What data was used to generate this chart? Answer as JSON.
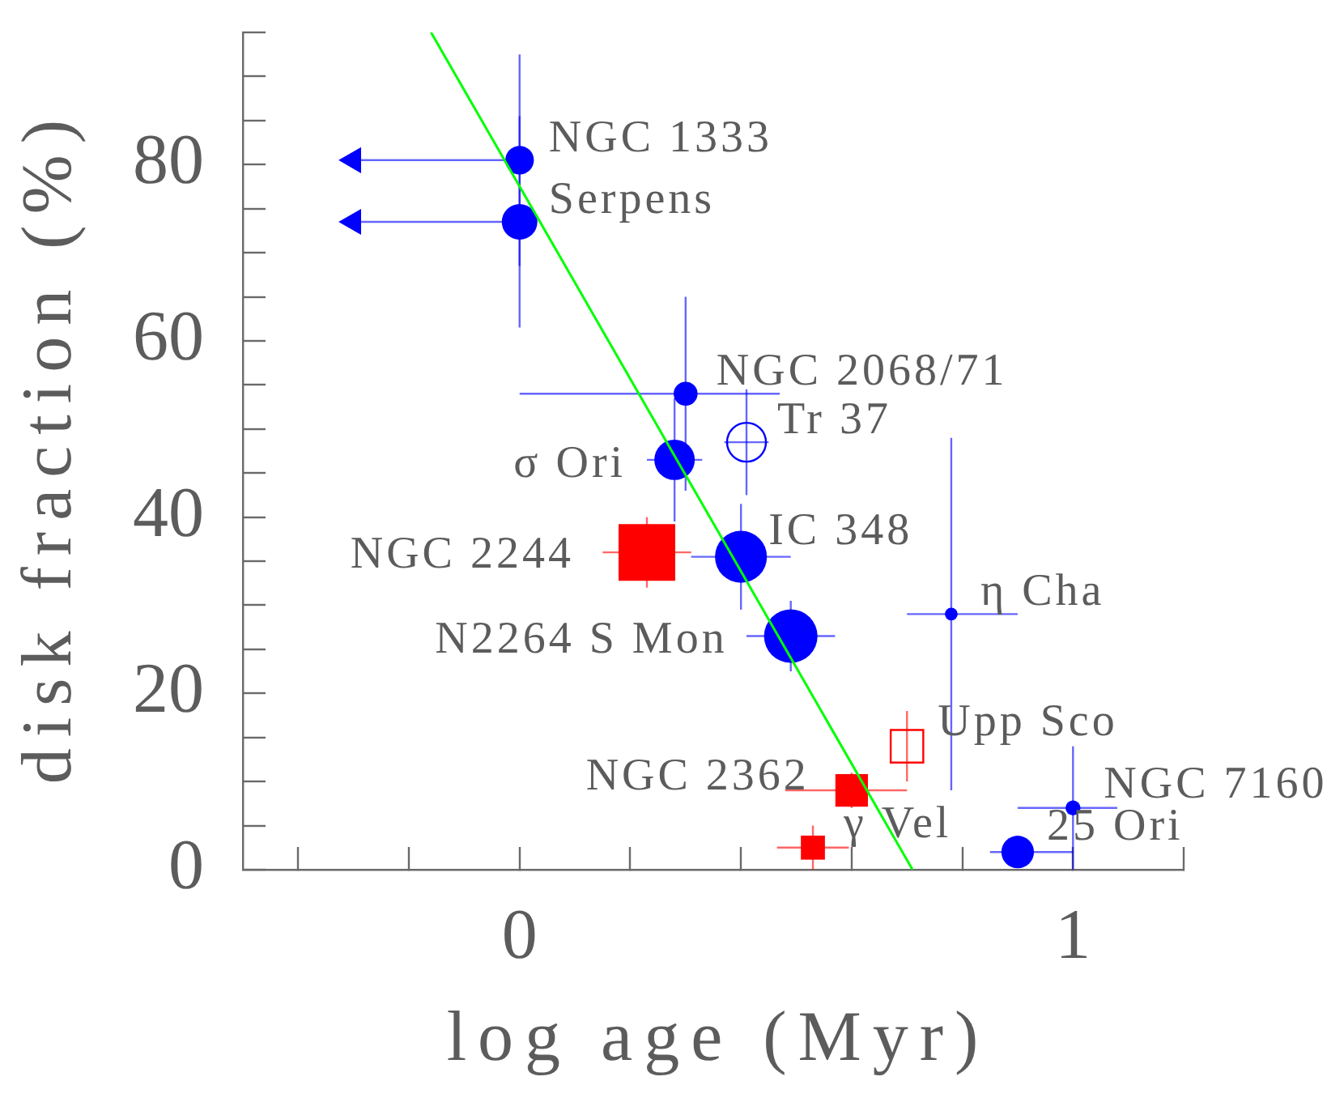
{
  "chart_data": {
    "type": "bubble",
    "xlabel": "log age (Myr)",
    "ylabel": "disk fraction (%)",
    "xlim": [
      -0.5,
      1.2
    ],
    "ylim": [
      0,
      95
    ],
    "xticks": [
      {
        "value": -0.4,
        "label": null
      },
      {
        "value": -0.2,
        "label": null
      },
      0,
      {
        "value": 0.2,
        "label": null
      },
      {
        "value": 0.4,
        "label": null
      },
      {
        "value": 0.6,
        "label": null
      },
      {
        "value": 0.8,
        "label": null
      },
      1,
      {
        "value": 1.2,
        "label": null
      }
    ],
    "yticks": [
      0,
      {
        "value": 5,
        "label": null
      },
      {
        "value": 10,
        "label": null
      },
      {
        "value": 15,
        "label": null
      },
      20,
      {
        "value": 25,
        "label": null
      },
      {
        "value": 30,
        "label": null
      },
      {
        "value": 35,
        "label": null
      },
      40,
      {
        "value": 45,
        "label": null
      },
      {
        "value": 50,
        "label": null
      },
      {
        "value": 55,
        "label": null
      },
      60,
      {
        "value": 65,
        "label": null
      },
      {
        "value": 70,
        "label": null
      },
      {
        "value": 75,
        "label": null
      },
      80,
      {
        "value": 85,
        "label": null
      },
      {
        "value": 90,
        "label": null
      },
      {
        "value": 95,
        "label": null
      }
    ],
    "series": [
      {
        "name": "NGC 1333",
        "color": "#0000ff",
        "marker": "circle",
        "x": [
          0
        ],
        "values": [
          80.5
        ],
        "sizes": [
          0.2
        ],
        "errors": [
          12
        ],
        "xerrors": [
          [
            -0.32,
            0
          ]
        ]
      },
      {
        "name": "Serpens",
        "color": "#0000ff",
        "marker": "circle",
        "x": [
          0
        ],
        "values": [
          73.5
        ],
        "sizes": [
          0.31
        ],
        "errors": [
          12
        ],
        "xerrors": [
          [
            -0.32,
            0
          ]
        ]
      },
      {
        "name": "NGC 2068/71",
        "color": "#0000ff",
        "marker": "circle",
        "x": [
          0.3
        ],
        "values": [
          54
        ],
        "sizes": [
          0.14
        ],
        "errors": [
          11
        ],
        "xerrors": [
          [
            0,
            0.47
          ]
        ]
      },
      {
        "name": "Tr 37",
        "color": "#0000ff",
        "marker": "circle",
        "x": [
          0.41
        ],
        "values": [
          48.5
        ],
        "sizes": [
          0.37
        ],
        "errors": [
          6
        ],
        "xerrors": [
          0.04
        ]
      },
      {
        "name": "σ Ori",
        "color": "#0000ff",
        "marker": "circle",
        "x": [
          0.28
        ],
        "values": [
          46.5
        ],
        "sizes": [
          0.4
        ],
        "errors": [
          7
        ],
        "xerrors": [
          0.05
        ]
      },
      {
        "name": "NGC 2244",
        "color": "#ff0000",
        "marker": "square",
        "x": [
          0.23
        ],
        "values": [
          36
        ],
        "sizes": [
          1
        ],
        "errors": [
          4
        ],
        "xerrors": [
          0.08
        ]
      },
      {
        "name": "IC 348",
        "color": "#0000ff",
        "marker": "circle",
        "x": [
          0.4
        ],
        "values": [
          35.5
        ],
        "sizes": [
          0.66
        ],
        "errors": [
          6
        ],
        "xerrors": [
          0.09
        ]
      },
      {
        "name": "N2264 S Mon",
        "color": "#0000ff",
        "marker": "circle",
        "x": [
          0.49
        ],
        "values": [
          26.5
        ],
        "sizes": [
          0.7
        ],
        "errors": [
          4
        ],
        "xerrors": [
          0.08
        ]
      },
      {
        "name": "η Cha",
        "color": "#0000ff",
        "marker": "circle",
        "x": [
          0.78
        ],
        "values": [
          29
        ],
        "sizes": [
          0.04
        ],
        "errors": [
          20
        ],
        "xerrors": [
          [
            0.7,
            0.9
          ]
        ]
      },
      {
        "name": "Upp Sco",
        "color": "#ff0000",
        "marker": "square",
        "x": [
          0.7
        ],
        "values": [
          14
        ],
        "sizes": [
          0.33
        ],
        "errors": [
          4
        ]
      },
      {
        "name": "NGC 2362",
        "color": "#ff0000",
        "marker": "square",
        "x": [
          0.6
        ],
        "values": [
          9
        ],
        "sizes": [
          0.33
        ],
        "errors": [
          2
        ],
        "xerrors": [
          [
            0.48,
            0.7
          ]
        ]
      },
      {
        "name": "γ Vel",
        "color": "#ff0000",
        "marker": "square",
        "x": [
          0.53
        ],
        "values": [
          2.5
        ],
        "sizes": [
          0.18
        ],
        "errors": [
          2.5
        ],
        "xerrors": [
          0.065
        ]
      },
      {
        "name": "NGC 7160",
        "color": "#0000ff",
        "marker": "circle",
        "x": [
          1.0
        ],
        "values": [
          7
        ],
        "sizes": [
          0.055
        ],
        "errors": [
          7
        ],
        "xerrors": [
          [
            0.9,
            1.08
          ]
        ]
      },
      {
        "name": "25 Ori",
        "color": "#0000ff",
        "marker": "circle",
        "x": [
          0.9
        ],
        "values": [
          2
        ],
        "sizes": [
          0.26
        ],
        "xerrors": [
          [
            0.85,
            1.0
          ]
        ]
      },
      {
        "type": "scatter",
        "color": "#0000ff",
        "marker": "triangle",
        "x": [
          -0.3,
          -0.3
        ],
        "values": [
          80.5,
          73.5
        ]
      },
      {
        "type": "line",
        "color": "#00ff00",
        "x": [
          -0.16,
          0.71
        ],
        "values": [
          95,
          0
        ]
      }
    ]
  }
}
